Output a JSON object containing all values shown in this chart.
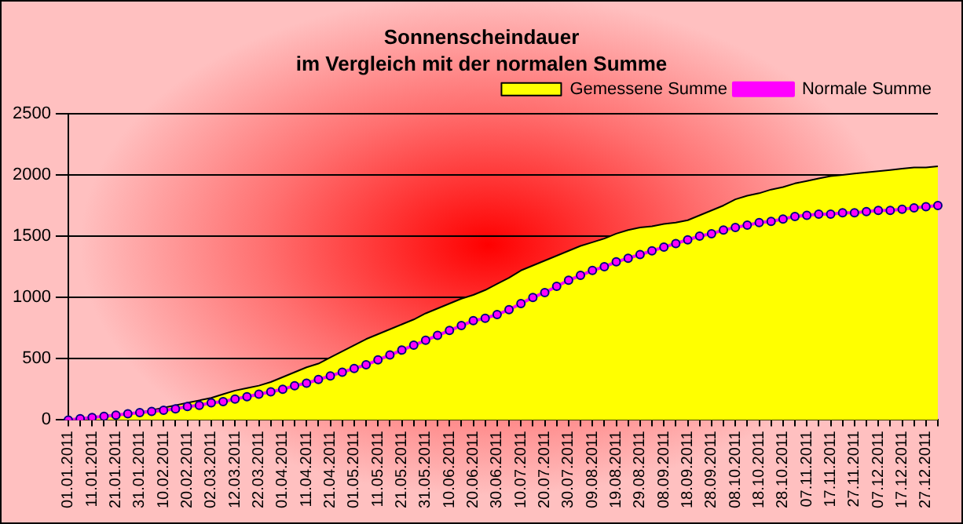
{
  "chart_data": {
    "type": "area",
    "title": "Sonnenscheindauer\nim Vergleich mit der normalen Summe",
    "categories": [
      "01.01.2011",
      null,
      "11.01.2011",
      null,
      "21.01.2011",
      null,
      "31.01.2011",
      null,
      "10.02.2011",
      null,
      "20.02.2011",
      null,
      "02.03.2011",
      null,
      "12.03.2011",
      null,
      "22.03.2011",
      null,
      "01.04.2011",
      null,
      "11.04.2011",
      null,
      "21.04.2011",
      null,
      "01.05.2011",
      null,
      "11.05.2011",
      null,
      "21.05.2011",
      null,
      "31.05.2011",
      null,
      "10.06.2011",
      null,
      "20.06.2011",
      null,
      "30.06.2011",
      null,
      "10.07.2011",
      null,
      "20.07.2011",
      null,
      "30.07.2011",
      null,
      "09.08.2011",
      null,
      "19.08.2011",
      null,
      "29.08.2011",
      null,
      "08.09.2011",
      null,
      "18.09.2011",
      null,
      "28.09.2011",
      null,
      "08.10.2011",
      null,
      "18.10.2011",
      null,
      "28.10.2011",
      null,
      "07.11.2011",
      null,
      "17.11.2011",
      null,
      "27.11.2011",
      null,
      "07.12.2011",
      null,
      "17.12.2011",
      null,
      "27.12.2011",
      null
    ],
    "series": [
      {
        "name": "Gemessene Summe",
        "color": "#ffff00",
        "values": [
          0,
          10,
          20,
          30,
          40,
          50,
          60,
          80,
          100,
          120,
          140,
          160,
          180,
          210,
          240,
          260,
          280,
          310,
          350,
          390,
          430,
          460,
          510,
          560,
          610,
          660,
          700,
          740,
          780,
          820,
          870,
          910,
          950,
          990,
          1020,
          1060,
          1110,
          1160,
          1220,
          1260,
          1300,
          1340,
          1380,
          1420,
          1450,
          1480,
          1520,
          1550,
          1570,
          1580,
          1600,
          1610,
          1630,
          1670,
          1710,
          1750,
          1800,
          1830,
          1850,
          1880,
          1900,
          1930,
          1950,
          1970,
          1990,
          2000,
          2010,
          2020,
          2030,
          2040,
          2050,
          2060,
          2060,
          2070
        ]
      },
      {
        "name": "Normale Summe",
        "type": "line",
        "color": "#ff00ff",
        "marker": "circle",
        "values": [
          0,
          10,
          20,
          30,
          40,
          50,
          60,
          70,
          80,
          90,
          110,
          120,
          140,
          150,
          170,
          190,
          210,
          230,
          250,
          280,
          300,
          330,
          360,
          390,
          420,
          450,
          490,
          530,
          570,
          610,
          650,
          690,
          730,
          770,
          810,
          830,
          860,
          900,
          950,
          1000,
          1040,
          1090,
          1140,
          1180,
          1220,
          1250,
          1290,
          1320,
          1350,
          1380,
          1410,
          1440,
          1470,
          1500,
          1520,
          1550,
          1570,
          1590,
          1610,
          1620,
          1640,
          1660,
          1670,
          1680,
          1680,
          1690,
          1690,
          1700,
          1710,
          1710,
          1720,
          1730,
          1740,
          1750
        ]
      }
    ],
    "ylim": [
      0,
      2500
    ],
    "yticks": [
      0,
      500,
      1000,
      1500,
      2000,
      2500
    ],
    "grid": "y",
    "legend": "top right"
  }
}
